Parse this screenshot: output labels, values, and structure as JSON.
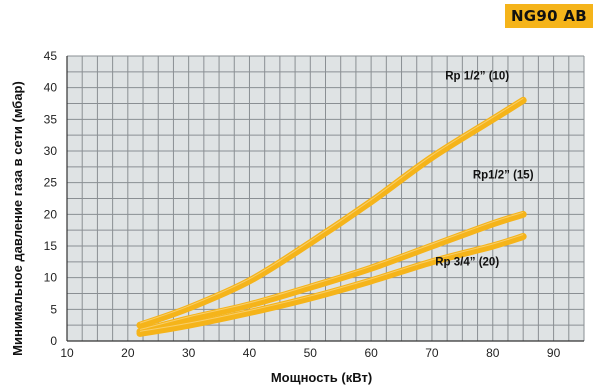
{
  "badge": {
    "text": "NG90 AB",
    "color": "#f5b41a"
  },
  "chart_data": {
    "type": "line",
    "xlabel": "Мощность (кВт)",
    "ylabel": "Минимальное давление газа в сети (мбар)",
    "xlim": [
      10,
      95
    ],
    "ylim": [
      0,
      45
    ],
    "xticks": [
      10,
      20,
      30,
      40,
      50,
      60,
      70,
      80,
      90
    ],
    "yticks": [
      0,
      5,
      10,
      15,
      20,
      25,
      30,
      35,
      40,
      45
    ],
    "grid": true,
    "grid_color": "#8a8f93",
    "plot_background": "#dfe3e4",
    "series_color": "#f5b41a",
    "series": [
      {
        "name": "Rp 1/2” (10)",
        "x": [
          22,
          30,
          40,
          50,
          60,
          70,
          80,
          85
        ],
        "y": [
          2.5,
          5.2,
          9.5,
          15.5,
          22,
          29,
          35,
          38
        ]
      },
      {
        "name": "Rp1/2” (15)",
        "x": [
          22,
          30,
          40,
          50,
          60,
          70,
          80,
          85
        ],
        "y": [
          1.5,
          3.5,
          5.7,
          8.5,
          11.5,
          15,
          18.5,
          20
        ]
      },
      {
        "name": "Rp 3/4” (20)",
        "x": [
          22,
          30,
          40,
          50,
          60,
          70,
          80,
          85
        ],
        "y": [
          1.2,
          2.5,
          4.5,
          6.8,
          9.5,
          12.5,
          15,
          16.5
        ]
      }
    ]
  }
}
